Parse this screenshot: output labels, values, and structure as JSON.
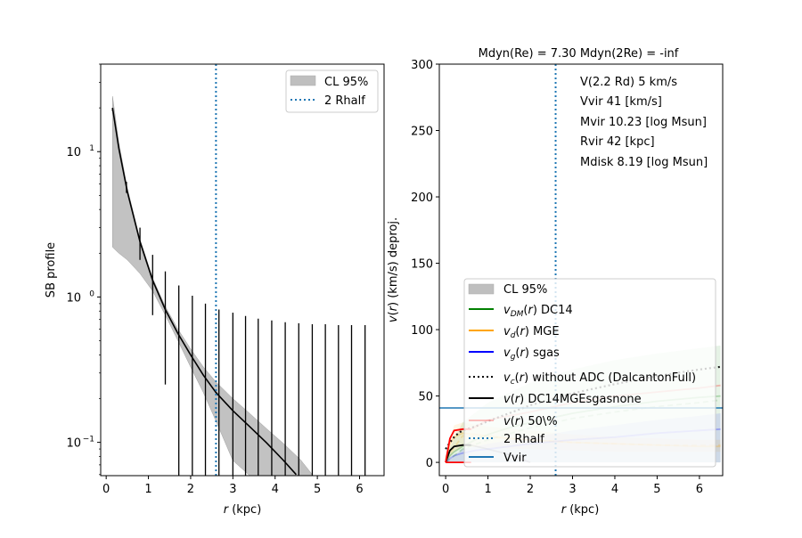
{
  "chart_data": [
    {
      "type": "line",
      "panel": "left",
      "title": "",
      "xlabel": "r (kpc)",
      "ylabel": "SB profile",
      "xlim": [
        -0.13,
        6.58
      ],
      "ylim": [
        0.059,
        40
      ],
      "yscale": "log",
      "xticks": [
        "0",
        "1",
        "2",
        "3",
        "4",
        "5",
        "6"
      ],
      "yticks": [
        {
          "value": 10,
          "label": "10^1"
        },
        {
          "value": 1,
          "label": "10^0"
        },
        {
          "value": 0.1,
          "label": "10^-1"
        }
      ],
      "legend": {
        "position": "top-right",
        "entries": [
          {
            "label": "CL 95%",
            "kind": "patch",
            "color": "#bfbfbf"
          },
          {
            "label": "2 Rhalf",
            "kind": "dotted",
            "color": "#1f77b4"
          }
        ]
      },
      "series": [
        {
          "name": "model",
          "color": "#000000",
          "x": [
            0.15,
            0.3,
            0.5,
            0.8,
            1.1,
            1.4,
            1.7,
            2.0,
            2.3,
            2.6,
            3.0,
            3.4,
            3.8,
            4.2,
            4.5
          ],
          "y": [
            20,
            10.5,
            5.3,
            2.4,
            1.3,
            0.82,
            0.56,
            0.4,
            0.29,
            0.22,
            0.165,
            0.128,
            0.099,
            0.075,
            0.06
          ]
        }
      ],
      "band": {
        "name": "CL 95%",
        "color": "#bfbfbf",
        "x": [
          0.15,
          0.3,
          0.5,
          0.8,
          1.1,
          1.4,
          1.7,
          2.0,
          2.3,
          2.6,
          3.0,
          3.4,
          3.8,
          4.2,
          4.6,
          4.9
        ],
        "upper": [
          24,
          11.5,
          5.6,
          2.5,
          1.35,
          0.86,
          0.6,
          0.44,
          0.33,
          0.26,
          0.2,
          0.158,
          0.124,
          0.098,
          0.076,
          0.059
        ],
        "lower": [
          2.2,
          2.0,
          1.8,
          1.45,
          1.1,
          0.75,
          0.5,
          0.33,
          0.22,
          0.14,
          0.075,
          0.059,
          0.059,
          0.059,
          0.059,
          0.059
        ]
      },
      "errorbars": {
        "color": "#000000",
        "x": [
          0.15,
          0.48,
          0.8,
          1.1,
          1.4,
          1.72,
          2.04,
          2.35,
          2.67,
          3.0,
          3.3,
          3.6,
          3.92,
          4.24,
          4.56,
          4.88,
          5.19,
          5.5,
          5.81,
          6.13
        ],
        "upper": [
          20,
          6.2,
          3.0,
          1.95,
          1.5,
          1.2,
          1.02,
          0.9,
          0.82,
          0.78,
          0.74,
          0.71,
          0.69,
          0.67,
          0.66,
          0.65,
          0.65,
          0.64,
          0.64,
          0.64
        ],
        "lower": [
          19,
          5.2,
          1.8,
          0.75,
          0.25,
          0.059,
          0.059,
          0.059,
          0.059,
          0.059,
          0.059,
          0.059,
          0.059,
          0.059,
          0.059,
          0.059,
          0.059,
          0.059,
          0.059,
          0.059
        ]
      },
      "vlines": [
        {
          "name": "2 Rhalf",
          "x": 2.6,
          "color": "#1f77b4",
          "style": "dotted"
        }
      ]
    },
    {
      "type": "line",
      "panel": "right",
      "title": "Mdyn(Re) = 7.30  Mdyn(2Re) = -inf",
      "xlabel": "r (kpc)",
      "ylabel": "v(r) (km/s) deproj.",
      "xlim": [
        -0.15,
        6.55
      ],
      "ylim": [
        -10,
        300
      ],
      "xticks": [
        "0",
        "1",
        "2",
        "3",
        "4",
        "5",
        "6"
      ],
      "yticks": [
        "0",
        "50",
        "100",
        "150",
        "200",
        "250",
        "300"
      ],
      "annotations": [
        "V(2.2 Rd) 5 km/s",
        "Vvir 41 [km/s]",
        "Mvir 10.23 [log Msun]",
        "Rvir 42 [kpc]",
        "Mdisk 8.19 [log Msun]"
      ],
      "legend": {
        "position": "lower-center",
        "entries": [
          {
            "label": "CL 95%",
            "kind": "patch",
            "color": "#bfbfbf"
          },
          {
            "label": "v_DM(r) DC14",
            "kind": "solid",
            "color": "#008000"
          },
          {
            "label": "v_d(r) MGE",
            "kind": "solid",
            "color": "#ffa500"
          },
          {
            "label": "v_g(r) sgas",
            "kind": "solid",
            "color": "#0000ff"
          },
          {
            "label": "v_c(r) without ADC (DalcantonFull)",
            "kind": "dotted",
            "color": "#000000"
          },
          {
            "label": "v(r) DC14MGEsgasnone",
            "kind": "solid",
            "color": "#000000"
          },
          {
            "label": "v(r) 50\\%",
            "kind": "solid",
            "color": "#ff0000"
          },
          {
            "label": "2 Rhalf",
            "kind": "dotted",
            "color": "#1f77b4"
          },
          {
            "label": "Vvir",
            "kind": "solid",
            "color": "#1f77b4"
          }
        ]
      },
      "series": [
        {
          "name": "v_DM(r) DC14",
          "color": "#008000",
          "x": [
            0,
            0.1,
            0.2,
            0.4,
            0.7,
            1,
            1.5,
            2,
            3,
            4,
            5,
            6,
            6.5
          ],
          "y": [
            0,
            5,
            8,
            12,
            17,
            21,
            26,
            30,
            37,
            42,
            46,
            49,
            50
          ]
        },
        {
          "name": "v_DM dashed",
          "color": "#008000",
          "style": "dashed",
          "x": [
            0,
            0.4,
            1,
            2,
            3,
            4,
            5,
            6,
            6.5
          ],
          "y": [
            0,
            10,
            17,
            26,
            33,
            38,
            42,
            45,
            47
          ]
        },
        {
          "name": "v_d(r) MGE",
          "color": "#ffa500",
          "x": [
            0,
            0.1,
            0.2,
            0.4,
            0.7,
            1,
            1.5,
            2,
            3,
            4,
            5,
            6,
            6.5
          ],
          "y": [
            2,
            14,
            19,
            22,
            21,
            20,
            18,
            17,
            15,
            14,
            13,
            12,
            12
          ]
        },
        {
          "name": "v_d dashed",
          "color": "#ffa500",
          "style": "dashed",
          "x": [
            0,
            0.4,
            1,
            2,
            3,
            4,
            5,
            6,
            6.5
          ],
          "y": [
            2,
            20,
            19,
            17,
            15,
            14,
            13,
            13,
            13
          ]
        },
        {
          "name": "v_g(r) sgas",
          "color": "#0000ff",
          "x": [
            0,
            0.1,
            0.2,
            0.4,
            0.7,
            1,
            1.5,
            2,
            3,
            4,
            5,
            6,
            6.5
          ],
          "y": [
            0,
            3,
            5,
            7,
            9,
            10,
            12,
            14,
            17,
            19,
            22,
            24,
            25
          ]
        },
        {
          "name": "v_c(r) without ADC",
          "color": "#000000",
          "style": "dotted",
          "x": [
            0,
            0.1,
            0.2,
            0.3,
            0.4,
            0.7,
            1,
            1.5,
            2,
            3,
            4,
            5,
            6,
            6.5
          ],
          "y": [
            10,
            15,
            19,
            22,
            24,
            27,
            31,
            37,
            43,
            52,
            59,
            65,
            70,
            72
          ]
        },
        {
          "name": "v(r) DC14MGEsgasnone",
          "color": "#000000",
          "x": [
            0,
            0.1,
            0.2,
            0.4,
            0.6
          ],
          "y": [
            0,
            9,
            12,
            13,
            13
          ]
        },
        {
          "name": "v(r) DC14MGEsgasnone faded",
          "color": "#000000",
          "faded": true,
          "x": [
            0.6,
            1,
            1.5,
            2
          ],
          "y": [
            13,
            10,
            6,
            0
          ]
        },
        {
          "name": "v(r) 50%",
          "color": "#ff0000",
          "x": [
            0,
            0.1,
            0.2,
            0.4,
            0.6
          ],
          "y": [
            0,
            18,
            24,
            25,
            25
          ]
        },
        {
          "name": "v(r) 50% faded",
          "color": "#ff0000",
          "faded": true,
          "x": [
            0.6,
            1,
            2,
            3,
            4,
            5,
            6,
            6.5
          ],
          "y": [
            25,
            32,
            38,
            45,
            50,
            53,
            56,
            58
          ]
        },
        {
          "name": "red lower",
          "color": "#ff0000",
          "x": [
            0,
            0.1,
            0.6
          ],
          "y": [
            0,
            0,
            0
          ]
        }
      ],
      "bands": [
        {
          "name": "DM band",
          "color": "#008000",
          "x": [
            0,
            0.4,
            1,
            2,
            3,
            4,
            5,
            6,
            6.5
          ],
          "upper": [
            5,
            30,
            45,
            60,
            70,
            77,
            82,
            86,
            88
          ],
          "lower": [
            0,
            0,
            0,
            0,
            0,
            0,
            0,
            0,
            0
          ]
        },
        {
          "name": "disk band",
          "color": "#ffa500",
          "x": [
            0,
            0.2,
            0.4,
            1,
            2,
            3,
            4,
            5,
            6,
            6.5
          ],
          "upper": [
            5,
            28,
            30,
            27,
            24,
            21,
            19,
            18,
            17,
            17
          ],
          "lower": [
            0,
            8,
            12,
            11,
            10,
            9,
            8,
            8,
            8,
            8
          ]
        },
        {
          "name": "gas band",
          "color": "#0000ff",
          "x": [
            0,
            0.4,
            1,
            2,
            3,
            4,
            5,
            6,
            6.5
          ],
          "upper": [
            0,
            10,
            14,
            19,
            24,
            28,
            32,
            35,
            37
          ],
          "lower": [
            0,
            0,
            0,
            0,
            0,
            0,
            0,
            0,
            0
          ]
        }
      ],
      "vlines": [
        {
          "name": "2 Rhalf",
          "x": 2.6,
          "color": "#1f77b4",
          "style": "dotted"
        }
      ],
      "hlines": [
        {
          "name": "Vvir",
          "y": 41,
          "color": "#1f77b4",
          "style": "solid"
        }
      ]
    }
  ]
}
